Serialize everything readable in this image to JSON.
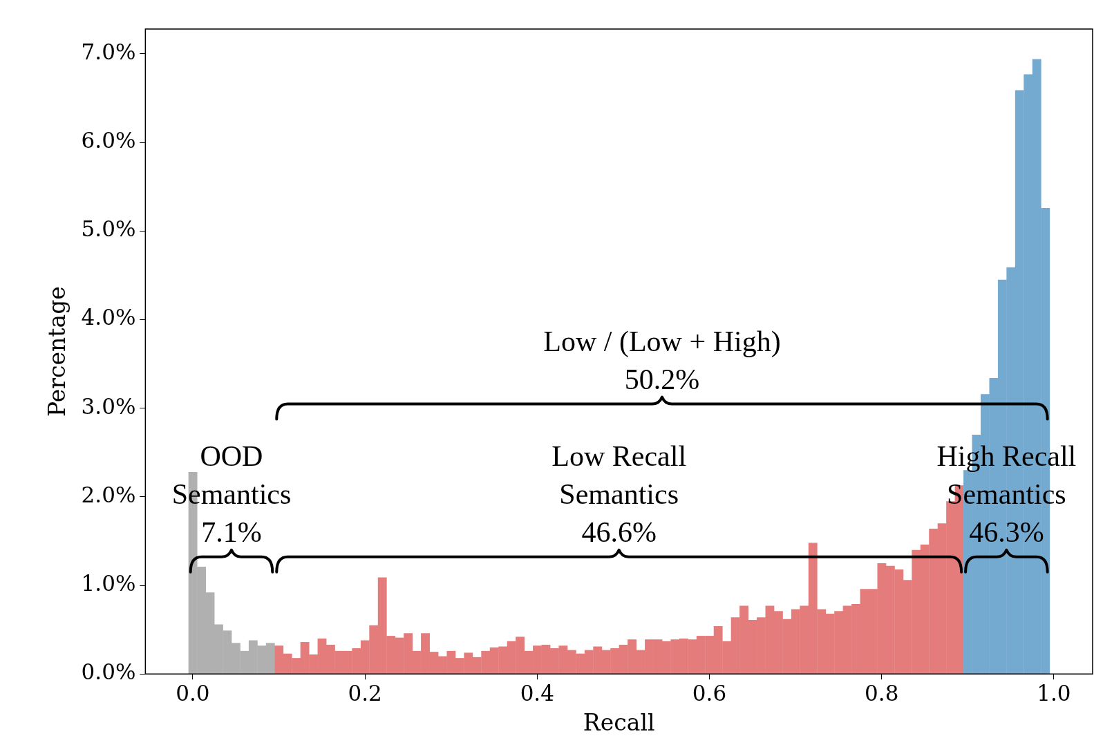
{
  "chart_data": {
    "type": "histogram",
    "xlabel": "Recall",
    "ylabel": "Percentage",
    "bins": [
      -0.005,
      0.005,
      0.015,
      0.025,
      0.035,
      0.045,
      0.055,
      0.065,
      0.075,
      0.085,
      0.095,
      0.105,
      0.115,
      0.125,
      0.135,
      0.145,
      0.155,
      0.165,
      0.175,
      0.185,
      0.195,
      0.205,
      0.215,
      0.225,
      0.235,
      0.245,
      0.255,
      0.265,
      0.275,
      0.285,
      0.295,
      0.305,
      0.315,
      0.325,
      0.335,
      0.345,
      0.355,
      0.365,
      0.375,
      0.385,
      0.395,
      0.405,
      0.415,
      0.425,
      0.435,
      0.445,
      0.455,
      0.465,
      0.475,
      0.485,
      0.495,
      0.505,
      0.515,
      0.525,
      0.535,
      0.545,
      0.555,
      0.565,
      0.575,
      0.585,
      0.595,
      0.605,
      0.615,
      0.625,
      0.635,
      0.645,
      0.655,
      0.665,
      0.675,
      0.685,
      0.695,
      0.705,
      0.715,
      0.725,
      0.735,
      0.745,
      0.755,
      0.765,
      0.775,
      0.785,
      0.795,
      0.805,
      0.815,
      0.825,
      0.835,
      0.845,
      0.855,
      0.865,
      0.875,
      0.885,
      0.895,
      0.905,
      0.915,
      0.925,
      0.935,
      0.945,
      0.955,
      0.965,
      0.975,
      0.985,
      0.995
    ],
    "values": [
      2.28,
      1.21,
      0.92,
      0.56,
      0.49,
      0.35,
      0.26,
      0.38,
      0.32,
      0.35,
      0.32,
      0.23,
      0.18,
      0.36,
      0.22,
      0.4,
      0.33,
      0.26,
      0.26,
      0.29,
      0.38,
      0.55,
      1.09,
      0.43,
      0.41,
      0.46,
      0.26,
      0.46,
      0.25,
      0.2,
      0.26,
      0.18,
      0.24,
      0.19,
      0.26,
      0.3,
      0.31,
      0.37,
      0.42,
      0.26,
      0.32,
      0.33,
      0.29,
      0.32,
      0.27,
      0.23,
      0.27,
      0.31,
      0.27,
      0.29,
      0.33,
      0.39,
      0.27,
      0.39,
      0.39,
      0.37,
      0.39,
      0.4,
      0.39,
      0.43,
      0.43,
      0.54,
      0.37,
      0.64,
      0.77,
      0.61,
      0.64,
      0.77,
      0.71,
      0.62,
      0.73,
      0.77,
      1.48,
      0.73,
      0.68,
      0.71,
      0.77,
      0.79,
      0.96,
      0.96,
      1.25,
      1.22,
      1.18,
      1.06,
      1.4,
      1.46,
      1.64,
      1.7,
      1.95,
      2.13,
      2.3,
      2.7,
      3.16,
      3.34,
      4.45,
      4.59,
      6.59,
      6.77,
      6.94,
      5.26
    ],
    "colors": [
      "#b0b0b0",
      "#b0b0b0",
      "#b0b0b0",
      "#b0b0b0",
      "#b0b0b0",
      "#b0b0b0",
      "#b0b0b0",
      "#b0b0b0",
      "#b0b0b0",
      "#b0b0b0",
      "#e47c7c",
      "#e47c7c",
      "#e47c7c",
      "#e47c7c",
      "#e47c7c",
      "#e47c7c",
      "#e47c7c",
      "#e47c7c",
      "#e47c7c",
      "#e47c7c",
      "#e47c7c",
      "#e47c7c",
      "#e47c7c",
      "#e47c7c",
      "#e47c7c",
      "#e47c7c",
      "#e47c7c",
      "#e47c7c",
      "#e47c7c",
      "#e47c7c",
      "#e47c7c",
      "#e47c7c",
      "#e47c7c",
      "#e47c7c",
      "#e47c7c",
      "#e47c7c",
      "#e47c7c",
      "#e47c7c",
      "#e47c7c",
      "#e47c7c",
      "#e47c7c",
      "#e47c7c",
      "#e47c7c",
      "#e47c7c",
      "#e47c7c",
      "#e47c7c",
      "#e47c7c",
      "#e47c7c",
      "#e47c7c",
      "#e47c7c",
      "#e47c7c",
      "#e47c7c",
      "#e47c7c",
      "#e47c7c",
      "#e47c7c",
      "#e47c7c",
      "#e47c7c",
      "#e47c7c",
      "#e47c7c",
      "#e47c7c",
      "#e47c7c",
      "#e47c7c",
      "#e47c7c",
      "#e47c7c",
      "#e47c7c",
      "#e47c7c",
      "#e47c7c",
      "#e47c7c",
      "#e47c7c",
      "#e47c7c",
      "#e47c7c",
      "#e47c7c",
      "#e47c7c",
      "#e47c7c",
      "#e47c7c",
      "#e47c7c",
      "#e47c7c",
      "#e47c7c",
      "#e47c7c",
      "#e47c7c",
      "#e47c7c",
      "#e47c7c",
      "#e47c7c",
      "#e47c7c",
      "#e47c7c",
      "#e47c7c",
      "#e47c7c",
      "#e47c7c",
      "#e47c7c",
      "#e47c7c",
      "#75aad0",
      "#75aad0",
      "#75aad0",
      "#75aad0",
      "#75aad0",
      "#75aad0",
      "#75aad0",
      "#75aad0",
      "#75aad0",
      "#75aad0"
    ],
    "xlim": [
      -0.055,
      1.045
    ],
    "xticks": [
      {
        "value": 0,
        "label": "0.0"
      },
      {
        "value": 0.2,
        "label": "0.2"
      },
      {
        "value": 0.4,
        "label": "0.4"
      },
      {
        "value": 0.6,
        "label": "0.6"
      },
      {
        "value": 0.8,
        "label": "0.8"
      },
      {
        "value": 1,
        "label": "1.0"
      }
    ],
    "ylim": [
      0,
      7.28
    ],
    "yticks": [
      {
        "value": 0,
        "label": "0.0%"
      },
      {
        "value": 1,
        "label": "1.0%"
      },
      {
        "value": 2,
        "label": "2.0%"
      },
      {
        "value": 3,
        "label": "3.0%"
      },
      {
        "value": 4,
        "label": "4.0%"
      },
      {
        "value": 5,
        "label": "5.0%"
      },
      {
        "value": 6,
        "label": "6.0%"
      },
      {
        "value": 7,
        "label": "7.0%"
      }
    ],
    "annotations": [
      "OOD\nSemantics\n7.1%",
      "Low Recall\nSemantics\n46.6%",
      "High Recall\nSemantics\n46.3%",
      "Low / (Low + High)\n50.2%"
    ],
    "grid": false,
    "legend": false
  }
}
